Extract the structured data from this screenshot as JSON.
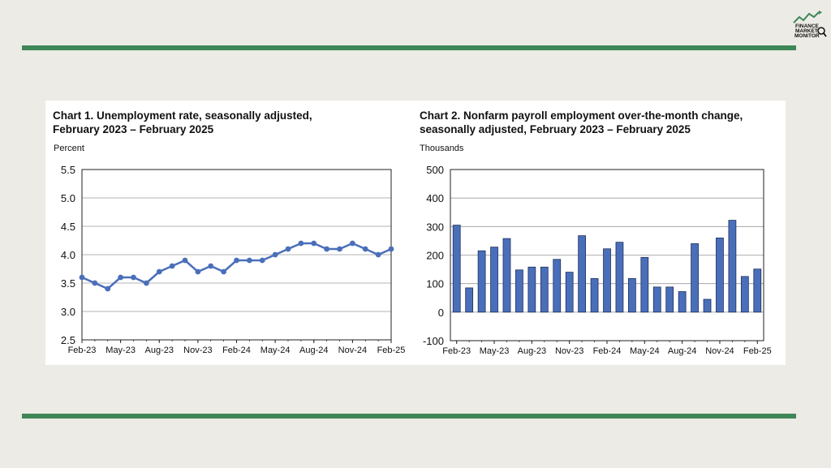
{
  "brand": {
    "logo_line1": "FINANCE",
    "logo_line2": "MARKET",
    "logo_line3": "MONITOR",
    "accent_color": "#3f8757"
  },
  "chart_data": [
    {
      "type": "line",
      "title_line1": "Chart 1. Unemployment rate, seasonally adjusted,",
      "title_line2": "February 2023 – February 2025",
      "ylabel": "Percent",
      "ylim": [
        2.5,
        5.5
      ],
      "yticks": [
        "2.5",
        "3.0",
        "3.5",
        "4.0",
        "4.5",
        "5.0",
        "5.5"
      ],
      "xtick_labels": [
        "Feb-23",
        "May-23",
        "Aug-23",
        "Nov-23",
        "Feb-24",
        "May-24",
        "Aug-24",
        "Nov-24",
        "Feb-25"
      ],
      "x": [
        "Feb-23",
        "Mar-23",
        "Apr-23",
        "May-23",
        "Jun-23",
        "Jul-23",
        "Aug-23",
        "Sep-23",
        "Oct-23",
        "Nov-23",
        "Dec-23",
        "Jan-24",
        "Feb-24",
        "Mar-24",
        "Apr-24",
        "May-24",
        "Jun-24",
        "Jul-24",
        "Aug-24",
        "Sep-24",
        "Oct-24",
        "Nov-24",
        "Dec-24",
        "Jan-25",
        "Feb-25"
      ],
      "values": [
        3.6,
        3.5,
        3.4,
        3.6,
        3.6,
        3.5,
        3.7,
        3.8,
        3.9,
        3.7,
        3.8,
        3.7,
        3.9,
        3.9,
        3.9,
        4.0,
        4.1,
        4.2,
        4.2,
        4.1,
        4.1,
        4.2,
        4.1,
        4.0,
        4.1
      ],
      "color": "#4a6fba",
      "grid": true
    },
    {
      "type": "bar",
      "title_line1": "Chart 2. Nonfarm payroll employment over-the-month change,",
      "title_line2": "seasonally adjusted, February 2023 – February 2025",
      "ylabel": "Thousands",
      "ylim": [
        -100,
        500
      ],
      "yticks": [
        "-100",
        "0",
        "100",
        "200",
        "300",
        "400",
        "500"
      ],
      "xtick_labels": [
        "Feb-23",
        "May-23",
        "Aug-23",
        "Nov-23",
        "Feb-24",
        "May-24",
        "Aug-24",
        "Nov-24",
        "Feb-25"
      ],
      "x": [
        "Feb-23",
        "Mar-23",
        "Apr-23",
        "May-23",
        "Jun-23",
        "Jul-23",
        "Aug-23",
        "Sep-23",
        "Oct-23",
        "Nov-23",
        "Dec-23",
        "Jan-24",
        "Feb-24",
        "Mar-24",
        "Apr-24",
        "May-24",
        "Jun-24",
        "Jul-24",
        "Aug-24",
        "Sep-24",
        "Oct-24",
        "Nov-24",
        "Dec-24",
        "Jan-25",
        "Feb-25"
      ],
      "values": [
        305,
        85,
        215,
        228,
        258,
        148,
        158,
        158,
        185,
        140,
        268,
        118,
        222,
        245,
        118,
        192,
        88,
        88,
        72,
        240,
        45,
        260,
        322,
        125,
        151
      ],
      "color": "#4a6fba",
      "grid": true
    }
  ]
}
